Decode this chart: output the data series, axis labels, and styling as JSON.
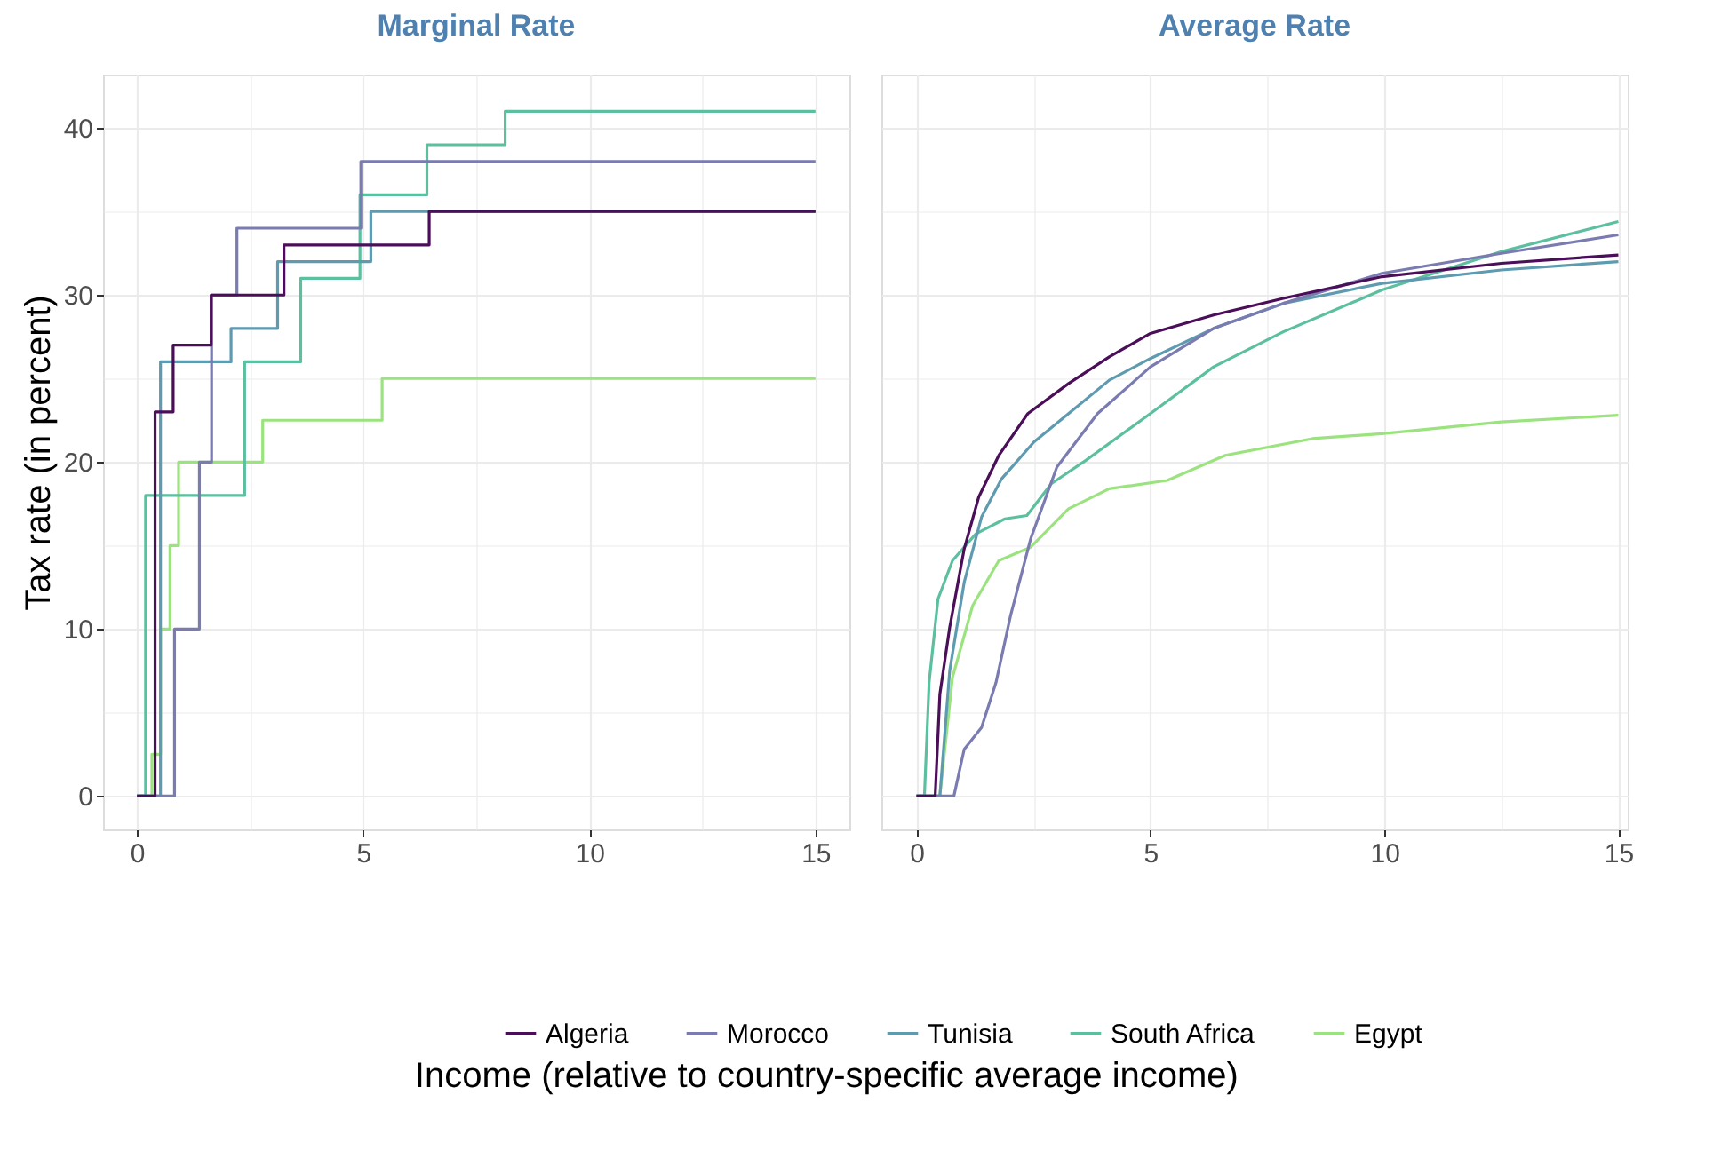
{
  "chart_data": [
    {
      "type": "step",
      "title": "Marginal Rate",
      "xlabel": "Income (relative to country-specific average income)",
      "ylabel": "Tax rate (in percent)",
      "xlim": [
        -0.75,
        15.75
      ],
      "xticks": [
        0,
        {
          "value": 2.5,
          "label": null
        },
        5,
        {
          "value": 7.5,
          "label": null
        },
        10,
        {
          "value": 12.5,
          "label": null
        },
        15
      ],
      "ylim": [
        -2,
        43.2
      ],
      "yticks": [
        0,
        {
          "value": 5,
          "label": null
        },
        10,
        {
          "value": 15,
          "label": null
        },
        20,
        {
          "value": 25,
          "label": null
        },
        30,
        {
          "value": 35,
          "label": null
        },
        40
      ],
      "grid": true,
      "legend": "bottom",
      "series": [
        {
          "name": "Algeria",
          "color": "#4b0f5a",
          "x": [
            0,
            0.4,
            0.8,
            1.64,
            3.25,
            6.46,
            15
          ],
          "values": [
            0,
            23,
            27,
            30,
            33,
            35,
            35
          ]
        },
        {
          "name": "Morocco",
          "color": "#7a7bb0",
          "x": [
            0,
            0.83,
            1.38,
            1.65,
            2.21,
            4.95,
            15
          ],
          "values": [
            0,
            10,
            20,
            30,
            34,
            38,
            38
          ]
        },
        {
          "name": "Tunisia",
          "color": "#5f9bb0",
          "x": [
            0,
            0.52,
            2.08,
            3.11,
            5.17,
            15
          ],
          "values": [
            0,
            26,
            28,
            32,
            35,
            35
          ]
        },
        {
          "name": "South Africa",
          "color": "#5cbfa0",
          "x": [
            0,
            0.19,
            2.38,
            3.62,
            4.93,
            6.41,
            8.14,
            15
          ],
          "values": [
            0,
            18,
            26,
            31,
            36,
            39,
            41,
            41
          ]
        },
        {
          "name": "Egypt",
          "color": "#9be37f",
          "x": [
            0,
            0.33,
            0.52,
            0.73,
            0.92,
            2.78,
            5.42,
            15
          ],
          "values": [
            0,
            2.5,
            10,
            15,
            20,
            22.5,
            25,
            25
          ]
        }
      ]
    },
    {
      "type": "line",
      "title": "Average Rate",
      "xlim": [
        -0.75,
        15.2
      ],
      "xticks": [
        0,
        {
          "value": 2.5,
          "label": null
        },
        5,
        {
          "value": 7.5,
          "label": null
        },
        10,
        {
          "value": 12.5,
          "label": null
        },
        15
      ],
      "ylim": [
        -2,
        43.2
      ],
      "yticks": [
        0,
        {
          "value": 5,
          "label": null
        },
        10,
        {
          "value": 15,
          "label": null
        },
        20,
        {
          "value": 25,
          "label": null
        },
        30,
        {
          "value": 35,
          "label": null
        },
        40
      ],
      "grid": true,
      "tick_labels": "x",
      "legend": "bottom",
      "series": [
        {
          "name": "Algeria",
          "color": "#4b0f5a",
          "x": [
            0,
            0.4,
            0.5,
            0.71,
            1.02,
            1.33,
            1.76,
            2.38,
            3.25,
            4.12,
            5,
            6.35,
            7.84,
            9.95,
            12.5,
            15
          ],
          "values": [
            0,
            0,
            6.1,
            10.1,
            14.8,
            17.9,
            20.4,
            22.9,
            24.7,
            26.3,
            27.7,
            28.8,
            29.8,
            31.1,
            31.9,
            32.4
          ]
        },
        {
          "name": "Morocco",
          "color": "#7a7bb0",
          "x": [
            0,
            0.8,
            1.02,
            1.39,
            1.7,
            2.01,
            2.44,
            3.0,
            3.87,
            5,
            6.35,
            7.84,
            9.95,
            12.5,
            15
          ],
          "values": [
            0,
            0,
            2.8,
            4.1,
            6.8,
            10.8,
            15.4,
            19.7,
            22.9,
            25.7,
            28.0,
            29.5,
            31.3,
            32.5,
            33.6
          ]
        },
        {
          "name": "Tunisia",
          "color": "#5f9bb0",
          "x": [
            0,
            0.5,
            0.71,
            1.02,
            1.39,
            1.82,
            2.51,
            3.25,
            4.12,
            5,
            6.35,
            7.84,
            9.95,
            12.5,
            15
          ],
          "values": [
            0,
            0,
            7.5,
            12.8,
            16.7,
            19.0,
            21.2,
            22.9,
            24.9,
            26.2,
            28.0,
            29.5,
            30.7,
            31.5,
            32.0
          ]
        },
        {
          "name": "South Africa",
          "color": "#5cbfa0",
          "x": [
            0,
            0.17,
            0.27,
            0.46,
            0.77,
            1.27,
            1.89,
            2.36,
            2.88,
            3.62,
            5,
            6.35,
            7.84,
            9.95,
            12.5,
            15
          ],
          "values": [
            0,
            0,
            6.8,
            11.8,
            14.1,
            15.7,
            16.6,
            16.8,
            18.7,
            20.1,
            22.9,
            25.7,
            27.8,
            30.3,
            32.6,
            34.4
          ]
        },
        {
          "name": "Egypt",
          "color": "#9be37f",
          "x": [
            0,
            0.5,
            0.77,
            1.2,
            1.76,
            2.44,
            3.25,
            4.12,
            5.36,
            6.6,
            8.46,
            9.95,
            12.5,
            15
          ],
          "values": [
            0,
            0,
            7.1,
            11.4,
            14.1,
            14.9,
            17.2,
            18.4,
            18.9,
            20.4,
            21.4,
            21.7,
            22.4,
            22.8
          ]
        }
      ]
    }
  ]
}
